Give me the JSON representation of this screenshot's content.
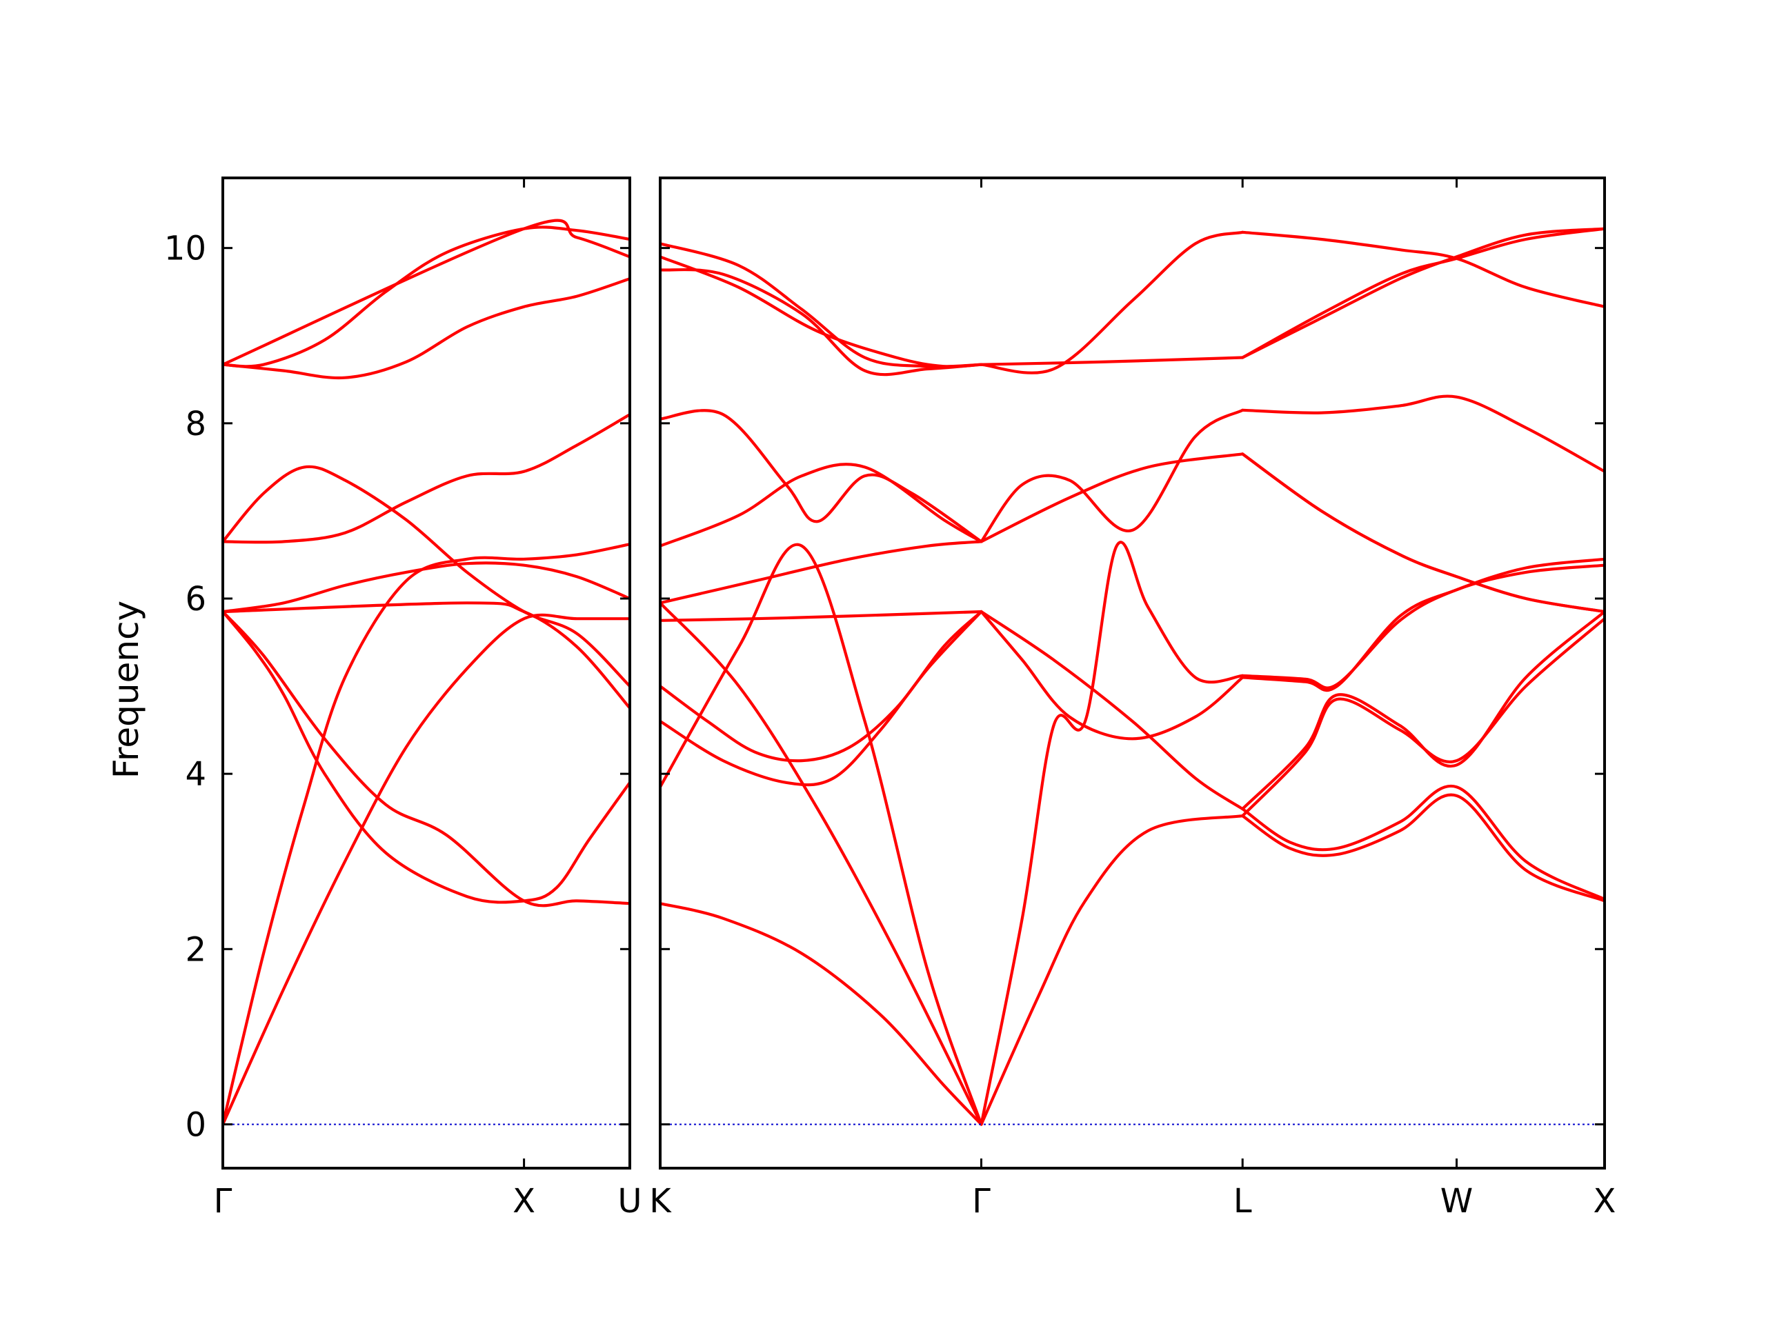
{
  "chart_data": {
    "type": "line",
    "ylabel": "Frequency",
    "ylim": [
      -0.5,
      10.8
    ],
    "yticks": [
      0,
      2,
      4,
      6,
      8,
      10
    ],
    "grid": false,
    "legend": "none",
    "colors": {
      "bands": "#ff0000",
      "zero_line": "#0000cc",
      "axes": "#000000"
    },
    "panels": [
      {
        "name": "left",
        "xlim": [
          0,
          1.0
        ],
        "ticks": [
          {
            "x": 0.0,
            "label": "Γ"
          },
          {
            "x": 0.74,
            "label": "X"
          },
          {
            "x": 1.0,
            "label": "U"
          }
        ],
        "series": [
          {
            "x": [
              0,
              0.1,
              0.2,
              0.3,
              0.45,
              0.6,
              0.74,
              0.87,
              1.0
            ],
            "y": [
              0,
              1.95,
              3.65,
              5.1,
              6.2,
              6.45,
              6.45,
              6.5,
              6.62
            ]
          },
          {
            "x": [
              0,
              0.15,
              0.3,
              0.45,
              0.6,
              0.74,
              0.87,
              1.0
            ],
            "y": [
              0,
              1.55,
              3.0,
              4.3,
              5.2,
              5.77,
              5.77,
              5.77
            ]
          },
          {
            "x": [
              0,
              0.08,
              0.15,
              0.25,
              0.4,
              0.6,
              0.74,
              0.82,
              0.9,
              1.0
            ],
            "y": [
              5.85,
              5.4,
              4.9,
              4.0,
              3.1,
              2.6,
              2.55,
              2.7,
              3.25,
              3.9
            ]
          },
          {
            "x": [
              0,
              0.1,
              0.25,
              0.4,
              0.55,
              0.74,
              0.87,
              1.0
            ],
            "y": [
              5.85,
              5.35,
              4.4,
              3.65,
              3.3,
              2.55,
              2.55,
              2.52
            ]
          },
          {
            "x": [
              0,
              0.15,
              0.3,
              0.45,
              0.6,
              0.74,
              0.87,
              1.0
            ],
            "y": [
              5.85,
              5.95,
              6.15,
              6.3,
              6.4,
              6.38,
              6.25,
              6.0
            ]
          },
          {
            "x": [
              0,
              0.1,
              0.2,
              0.3,
              0.45,
              0.6,
              0.74,
              0.87,
              1.0
            ],
            "y": [
              6.65,
              7.2,
              7.5,
              7.35,
              6.9,
              6.3,
              5.85,
              5.6,
              5.0
            ]
          },
          {
            "x": [
              0,
              0.15,
              0.3,
              0.45,
              0.6,
              0.74,
              0.87,
              1.0
            ],
            "y": [
              6.65,
              6.65,
              6.75,
              7.1,
              7.4,
              7.45,
              7.75,
              8.1
            ]
          },
          {
            "x": [
              0,
              0.6,
              0.74,
              0.87,
              1.0
            ],
            "y": [
              5.85,
              5.95,
              5.85,
              5.45,
              4.75
            ]
          },
          {
            "x": [
              0,
              0.15,
              0.3,
              0.45,
              0.6,
              0.74,
              0.87,
              1.0
            ],
            "y": [
              8.67,
              8.6,
              8.52,
              8.7,
              9.1,
              9.33,
              9.45,
              9.65
            ]
          },
          {
            "x": [
              0,
              0.1,
              0.25,
              0.4,
              0.55,
              0.74,
              0.87,
              1.0
            ],
            "y": [
              8.67,
              8.67,
              8.95,
              9.5,
              9.95,
              10.22,
              10.2,
              10.1
            ]
          },
          {
            "x": [
              0,
              0.74,
              0.87,
              1.0
            ],
            "y": [
              8.67,
              10.22,
              10.12,
              9.9
            ]
          },
          {
            "x": [
              0,
              1.0
            ],
            "y": [
              0,
              0
            ],
            "zero_line": true
          }
        ]
      },
      {
        "name": "right",
        "xlim": [
          0,
          3.0
        ],
        "ticks": [
          {
            "x": 0.0,
            "label": "K"
          },
          {
            "x": 1.02,
            "label": "Γ"
          },
          {
            "x": 1.85,
            "label": "L"
          },
          {
            "x": 2.53,
            "label": "W"
          },
          {
            "x": 3.0,
            "label": "X"
          }
        ],
        "series": [
          {
            "x": [
              0,
              0.2,
              0.45,
              0.7,
              0.9,
              1.02
            ],
            "y": [
              2.52,
              2.35,
              1.95,
              1.25,
              0.45,
              0
            ]
          },
          {
            "x": [
              0,
              0.25,
              0.5,
              0.75,
              1.02
            ],
            "y": [
              5.95,
              5.0,
              3.6,
              1.95,
              0
            ]
          },
          {
            "x": [
              0,
              0.25,
              0.45,
              0.65,
              0.85,
              1.02
            ],
            "y": [
              3.85,
              5.45,
              6.6,
              4.6,
              1.75,
              0
            ]
          },
          {
            "x": [
              1.02,
              1.2,
              1.35,
              1.55,
              1.85
            ],
            "y": [
              0,
              1.45,
              2.55,
              3.35,
              3.52
            ]
          },
          {
            "x": [
              1.02,
              1.15,
              1.25,
              1.35,
              1.45,
              1.55,
              1.7,
              1.85
            ],
            "y": [
              0,
              2.35,
              4.55,
              4.6,
              6.6,
              5.9,
              5.1,
              5.12
            ]
          },
          {
            "x": [
              0,
              0.2,
              0.4,
              0.55,
              0.7,
              0.85,
              1.02
            ],
            "y": [
              4.6,
              4.15,
              3.9,
              3.95,
              4.5,
              5.2,
              5.85
            ]
          },
          {
            "x": [
              0,
              0.15,
              0.3,
              0.45,
              0.6,
              0.75,
              0.9,
              1.02
            ],
            "y": [
              5.0,
              4.6,
              4.25,
              4.15,
              4.3,
              4.75,
              5.45,
              5.85
            ]
          },
          {
            "x": [
              0,
              0.3,
              0.6,
              0.85,
              1.02
            ],
            "y": [
              5.75,
              5.77,
              5.8,
              5.83,
              5.85
            ]
          },
          {
            "x": [
              0,
              0.3,
              0.6,
              0.85,
              1.02
            ],
            "y": [
              5.95,
              6.2,
              6.45,
              6.6,
              6.65
            ]
          },
          {
            "x": [
              0,
              0.25,
              0.45,
              0.65,
              0.9,
              1.02
            ],
            "y": [
              6.6,
              6.95,
              7.4,
              7.5,
              6.9,
              6.65
            ]
          },
          {
            "x": [
              0,
              0.2,
              0.4,
              0.5,
              0.65,
              0.8,
              1.02
            ],
            "y": [
              8.05,
              8.1,
              7.3,
              6.88,
              7.4,
              7.2,
              6.65
            ]
          },
          {
            "x": [
              1.02,
              1.3,
              1.55,
              1.85
            ],
            "y": [
              6.65,
              7.15,
              7.5,
              7.65
            ]
          },
          {
            "x": [
              1.02,
              1.15,
              1.3,
              1.5,
              1.7,
              1.85
            ],
            "y": [
              6.65,
              7.3,
              7.35,
              6.78,
              7.85,
              8.15
            ]
          },
          {
            "x": [
              1.02,
              1.15,
              1.3,
              1.5,
              1.7,
              1.85
            ],
            "y": [
              5.85,
              5.3,
              4.65,
              4.4,
              4.65,
              5.1
            ]
          },
          {
            "x": [
              1.02,
              1.25,
              1.5,
              1.7,
              1.85
            ],
            "y": [
              5.85,
              5.3,
              4.6,
              3.95,
              3.6
            ]
          },
          {
            "x": [
              0,
              0.25,
              0.5,
              0.75,
              0.9,
              1.02
            ],
            "y": [
              9.9,
              9.55,
              9.05,
              8.75,
              8.65,
              8.67
            ]
          },
          {
            "x": [
              0,
              0.2,
              0.45,
              0.65,
              0.85,
              1.02
            ],
            "y": [
              9.75,
              9.7,
              9.25,
              8.6,
              8.62,
              8.67
            ]
          },
          {
            "x": [
              0,
              0.25,
              0.45,
              0.65,
              0.85,
              1.02
            ],
            "y": [
              10.05,
              9.8,
              9.3,
              8.75,
              8.65,
              8.67
            ]
          },
          {
            "x": [
              1.02,
              1.25,
              1.5,
              1.7,
              1.85
            ],
            "y": [
              8.67,
              8.62,
              9.4,
              10.05,
              10.18
            ]
          },
          {
            "x": [
              1.02,
              1.4,
              1.85
            ],
            "y": [
              8.67,
              8.7,
              8.75
            ]
          },
          {
            "x": [
              1.85,
              2.1,
              2.35,
              2.53,
              2.75,
              3.0
            ],
            "y": [
              10.18,
              10.1,
              9.98,
              9.88,
              9.55,
              9.33
            ]
          },
          {
            "x": [
              1.85,
              2.1,
              2.35,
              2.53,
              2.75,
              3.0
            ],
            "y": [
              8.75,
              9.25,
              9.7,
              9.88,
              10.1,
              10.22
            ]
          },
          {
            "x": [
              1.85,
              2.1,
              2.35,
              2.53,
              2.75,
              3.0
            ],
            "y": [
              8.75,
              9.2,
              9.65,
              9.9,
              10.15,
              10.22
            ]
          },
          {
            "x": [
              1.85,
              2.1,
              2.35,
              2.53,
              2.75,
              3.0
            ],
            "y": [
              8.15,
              8.12,
              8.2,
              8.3,
              7.95,
              7.45
            ]
          },
          {
            "x": [
              1.85,
              2.1,
              2.35,
              2.53,
              2.75,
              3.0
            ],
            "y": [
              7.65,
              7.0,
              6.5,
              6.25,
              6.0,
              5.85
            ]
          },
          {
            "x": [
              1.85,
              2.1,
              2.35,
              2.53,
              2.75,
              3.0
            ],
            "y": [
              7.65,
              7.0,
              6.5,
              6.25,
              6.0,
              5.85
            ]
          },
          {
            "x": [
              1.85,
              2.05,
              2.15,
              2.35,
              2.53,
              2.75,
              3.0
            ],
            "y": [
              5.1,
              5.05,
              5.0,
              5.8,
              6.1,
              6.35,
              6.45
            ]
          },
          {
            "x": [
              1.85,
              2.05,
              2.15,
              2.35,
              2.53,
              2.75,
              3.0
            ],
            "y": [
              5.12,
              5.08,
              5.02,
              5.75,
              6.1,
              6.3,
              6.38
            ]
          },
          {
            "x": [
              1.85,
              2.0,
              2.15,
              2.35,
              2.53,
              2.75,
              3.0
            ],
            "y": [
              3.52,
              3.15,
              3.08,
              3.35,
              3.75,
              2.9,
              2.55
            ]
          },
          {
            "x": [
              1.85,
              2.0,
              2.15,
              2.35,
              2.53,
              2.75,
              3.0
            ],
            "y": [
              3.6,
              3.22,
              3.15,
              3.45,
              3.85,
              3.0,
              2.57
            ]
          },
          {
            "x": [
              1.85,
              2.05,
              2.15,
              2.35,
              2.53,
              2.75,
              3.0
            ],
            "y": [
              3.6,
              4.3,
              4.9,
              4.55,
              4.1,
              5.1,
              5.85
            ]
          },
          {
            "x": [
              1.85,
              2.05,
              2.15,
              2.35,
              2.53,
              2.75,
              3.0
            ],
            "y": [
              3.52,
              4.25,
              4.85,
              4.5,
              4.15,
              5.0,
              5.77
            ]
          },
          {
            "x": [
              0,
              3.0
            ],
            "y": [
              0,
              0
            ],
            "zero_line": true
          }
        ]
      }
    ]
  }
}
